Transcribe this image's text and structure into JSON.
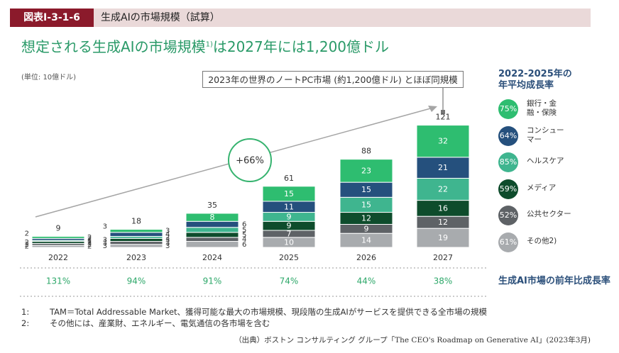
{
  "header": {
    "tag": "図表Ⅰ-3-1-6",
    "title": "生成AIの市場規模（試算）"
  },
  "headline": {
    "text": "想定される生成AIの市場規模",
    "sup": "1)",
    "rest": "は2027年には1,200億ドル"
  },
  "unit_label": "(単位: 10億ドル)",
  "callout": "2023年の世界のノートPC市場 (約1,200億ドル) とほぼ同規模",
  "growth_bubble": "+66%",
  "cagr": {
    "title": "2022-2025年の年平均成長率",
    "items": [
      {
        "rate": "75%",
        "label": "銀行・金融・保険",
        "color": "#2ebd70"
      },
      {
        "rate": "64%",
        "label": "コンシューマー",
        "color": "#25507d"
      },
      {
        "rate": "85%",
        "label": "ヘルスケア",
        "color": "#3fb58f"
      },
      {
        "rate": "59%",
        "label": "メディア",
        "color": "#0e4c2c"
      },
      {
        "rate": "52%",
        "label": "公共セクター",
        "color": "#5e6266"
      },
      {
        "rate": "61%",
        "label": "その他2)",
        "color": "#a8abae"
      }
    ]
  },
  "yoy": {
    "title": "生成AI市場の前年比成長率",
    "values": [
      "131%",
      "94%",
      "91%",
      "74%",
      "44%",
      "38%"
    ]
  },
  "footnotes": [
    {
      "key": "1:",
      "text": "TAM＝Total Addressable Market、獲得可能な最大の市場規模、現段階の生成AIがサービスを提供できる全市場の規模"
    },
    {
      "key": "2:",
      "text": "その他には、産業財、エネルギー、電気通信の各市場を含む"
    }
  ],
  "source": "（出典）ボストン コンサルティング グループ「The CEO's Roadmap on Generative AI」(2023年3月)",
  "chart_data": {
    "type": "bar",
    "stacked": true,
    "categories": [
      "2022",
      "2023",
      "2024",
      "2025",
      "2026",
      "2027"
    ],
    "totals": [
      9,
      18,
      35,
      61,
      88,
      121
    ],
    "series": [
      {
        "name": "その他2)",
        "color": "#a8abae",
        "values": [
          2,
          3,
          6,
          10,
          14,
          19
        ]
      },
      {
        "name": "公共セクター",
        "color": "#5e6266",
        "values": [
          2,
          3,
          4,
          7,
          9,
          12
        ]
      },
      {
        "name": "メディア",
        "color": "#0e4c2c",
        "values": [
          2,
          3,
          5,
          9,
          12,
          16
        ]
      },
      {
        "name": "ヘルスケア",
        "color": "#3fb58f",
        "values": [
          1,
          2,
          5,
          9,
          15,
          22
        ]
      },
      {
        "name": "コンシューマー",
        "color": "#25507d",
        "values": [
          2,
          4,
          6,
          11,
          15,
          21
        ]
      },
      {
        "name": "銀行・金融・保険",
        "color": "#2ebd70",
        "values": [
          2,
          3,
          8,
          15,
          23,
          32
        ]
      }
    ],
    "ylim": [
      0,
      121
    ]
  }
}
